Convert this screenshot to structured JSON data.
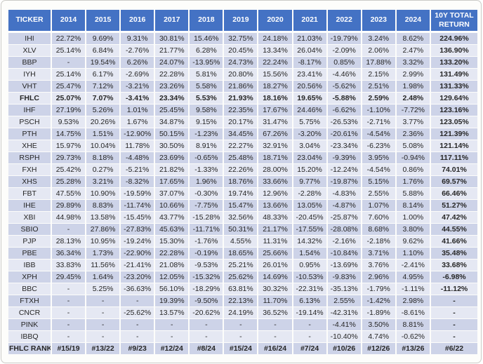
{
  "colors": {
    "header_bg": "#4472C4",
    "header_text": "#FFFFFF",
    "band_dark": "#CDD3E8",
    "band_light": "#E5E8F3",
    "text": "#262626",
    "card_border": "#CBCBC7"
  },
  "chart_data": {
    "type": "table",
    "title": "",
    "columns": [
      "TICKER",
      "2014",
      "2015",
      "2016",
      "2017",
      "2018",
      "2019",
      "2020",
      "2021",
      "2022",
      "2023",
      "2024",
      "10Y TOTAL RETURN"
    ],
    "rows": [
      {
        "ticker": "IHI",
        "bold": false,
        "values": [
          "22.72%",
          "9.69%",
          "9.31%",
          "30.81%",
          "15.46%",
          "32.75%",
          "24.18%",
          "21.03%",
          "-19.79%",
          "3.24%",
          "8.62%",
          "224.96%"
        ]
      },
      {
        "ticker": "XLV",
        "bold": false,
        "values": [
          "25.14%",
          "6.84%",
          "-2.76%",
          "21.77%",
          "6.28%",
          "20.45%",
          "13.34%",
          "26.04%",
          "-2.09%",
          "2.06%",
          "2.47%",
          "136.90%"
        ]
      },
      {
        "ticker": "BBP",
        "bold": false,
        "values": [
          "-",
          "19.54%",
          "6.26%",
          "24.07%",
          "-13.95%",
          "24.73%",
          "22.24%",
          "-8.17%",
          "0.85%",
          "17.88%",
          "3.32%",
          "133.20%"
        ]
      },
      {
        "ticker": "IYH",
        "bold": false,
        "values": [
          "25.14%",
          "6.17%",
          "-2.69%",
          "22.28%",
          "5.81%",
          "20.80%",
          "15.56%",
          "23.41%",
          "-4.46%",
          "2.15%",
          "2.99%",
          "131.49%"
        ]
      },
      {
        "ticker": "VHT",
        "bold": false,
        "values": [
          "25.47%",
          "7.12%",
          "-3.21%",
          "23.26%",
          "5.58%",
          "21.86%",
          "18.27%",
          "20.56%",
          "-5.62%",
          "2.51%",
          "1.98%",
          "131.33%"
        ]
      },
      {
        "ticker": "FHLC",
        "bold": true,
        "values": [
          "25.07%",
          "7.07%",
          "-3.41%",
          "23.34%",
          "5.53%",
          "21.93%",
          "18.16%",
          "19.65%",
          "-5.88%",
          "2.59%",
          "2.48%",
          "129.64%"
        ]
      },
      {
        "ticker": "IHF",
        "bold": false,
        "values": [
          "27.19%",
          "5.26%",
          "1.01%",
          "25.45%",
          "9.58%",
          "22.35%",
          "17.67%",
          "24.46%",
          "-6.62%",
          "-1.10%",
          "-7.72%",
          "123.16%"
        ]
      },
      {
        "ticker": "PSCH",
        "bold": false,
        "values": [
          "9.53%",
          "20.26%",
          "1.67%",
          "34.87%",
          "9.15%",
          "20.17%",
          "31.47%",
          "5.75%",
          "-26.53%",
          "-2.71%",
          "3.77%",
          "123.05%"
        ]
      },
      {
        "ticker": "PTH",
        "bold": false,
        "values": [
          "14.75%",
          "1.51%",
          "-12.90%",
          "50.15%",
          "-1.23%",
          "34.45%",
          "67.26%",
          "-3.20%",
          "-20.61%",
          "-4.54%",
          "2.36%",
          "121.39%"
        ]
      },
      {
        "ticker": "XHE",
        "bold": false,
        "values": [
          "15.97%",
          "10.04%",
          "11.78%",
          "30.50%",
          "8.91%",
          "22.27%",
          "32.91%",
          "3.04%",
          "-23.34%",
          "-6.23%",
          "5.08%",
          "121.14%"
        ]
      },
      {
        "ticker": "RSPH",
        "bold": false,
        "values": [
          "29.73%",
          "8.18%",
          "-4.48%",
          "23.69%",
          "-0.65%",
          "25.48%",
          "18.71%",
          "23.04%",
          "-9.39%",
          "3.95%",
          "-0.94%",
          "117.11%"
        ]
      },
      {
        "ticker": "FXH",
        "bold": false,
        "values": [
          "25.42%",
          "0.27%",
          "-5.21%",
          "21.82%",
          "-1.33%",
          "22.26%",
          "28.00%",
          "15.20%",
          "-12.24%",
          "-4.54%",
          "0.86%",
          "74.01%"
        ]
      },
      {
        "ticker": "XHS",
        "bold": false,
        "values": [
          "25.28%",
          "3.21%",
          "-8.32%",
          "17.65%",
          "1.96%",
          "18.76%",
          "33.66%",
          "9.77%",
          "-19.87%",
          "5.15%",
          "1.76%",
          "69.57%"
        ]
      },
      {
        "ticker": "FBT",
        "bold": false,
        "values": [
          "47.55%",
          "10.90%",
          "-19.59%",
          "37.07%",
          "-0.30%",
          "19.74%",
          "12.96%",
          "-2.28%",
          "-4.83%",
          "2.55%",
          "5.88%",
          "66.46%"
        ]
      },
      {
        "ticker": "IHE",
        "bold": false,
        "values": [
          "29.89%",
          "8.83%",
          "-11.74%",
          "10.66%",
          "-7.75%",
          "15.47%",
          "13.66%",
          "13.05%",
          "-4.87%",
          "1.07%",
          "8.14%",
          "51.27%"
        ]
      },
      {
        "ticker": "XBI",
        "bold": false,
        "values": [
          "44.98%",
          "13.58%",
          "-15.45%",
          "43.77%",
          "-15.28%",
          "32.56%",
          "48.33%",
          "-20.45%",
          "-25.87%",
          "7.60%",
          "1.00%",
          "47.42%"
        ]
      },
      {
        "ticker": "SBIO",
        "bold": false,
        "values": [
          "-",
          "27.86%",
          "-27.83%",
          "45.63%",
          "-11.71%",
          "50.31%",
          "21.17%",
          "-17.55%",
          "-28.08%",
          "8.68%",
          "3.80%",
          "44.55%"
        ]
      },
      {
        "ticker": "PJP",
        "bold": false,
        "values": [
          "28.13%",
          "10.95%",
          "-19.24%",
          "15.30%",
          "-1.76%",
          "4.55%",
          "11.31%",
          "14.32%",
          "-2.16%",
          "-2.18%",
          "9.62%",
          "41.66%"
        ]
      },
      {
        "ticker": "PBE",
        "bold": false,
        "values": [
          "36.34%",
          "1.73%",
          "-22.90%",
          "22.28%",
          "-0.19%",
          "18.65%",
          "25.66%",
          "1.54%",
          "-10.84%",
          "3.71%",
          "1.10%",
          "35.48%"
        ]
      },
      {
        "ticker": "IBB",
        "bold": false,
        "values": [
          "33.83%",
          "11.56%",
          "-21.41%",
          "21.08%",
          "-9.53%",
          "25.21%",
          "26.01%",
          "0.95%",
          "-13.69%",
          "3.76%",
          "-2.41%",
          "33.68%"
        ]
      },
      {
        "ticker": "XPH",
        "bold": false,
        "values": [
          "29.45%",
          "1.64%",
          "-23.20%",
          "12.05%",
          "-15.32%",
          "25.62%",
          "14.69%",
          "-10.53%",
          "-9.83%",
          "2.96%",
          "4.95%",
          "-6.98%"
        ]
      },
      {
        "ticker": "BBC",
        "bold": false,
        "values": [
          "-",
          "5.25%",
          "-36.63%",
          "56.10%",
          "-18.29%",
          "63.81%",
          "30.32%",
          "-22.31%",
          "-35.13%",
          "-1.79%",
          "-1.11%",
          "-11.12%"
        ]
      },
      {
        "ticker": "FTXH",
        "bold": false,
        "values": [
          "-",
          "-",
          "-",
          "19.39%",
          "-9.50%",
          "22.13%",
          "11.70%",
          "6.13%",
          "2.55%",
          "-1.42%",
          "2.98%",
          "-"
        ]
      },
      {
        "ticker": "CNCR",
        "bold": false,
        "values": [
          "-",
          "-",
          "-25.62%",
          "13.57%",
          "-20.62%",
          "24.19%",
          "36.52%",
          "-19.14%",
          "-42.31%",
          "-1.89%",
          "-8.61%",
          "-"
        ]
      },
      {
        "ticker": "PINK",
        "bold": false,
        "values": [
          "-",
          "-",
          "-",
          "-",
          "-",
          "-",
          "-",
          "-",
          "-4.41%",
          "3.50%",
          "8.81%",
          "-"
        ]
      },
      {
        "ticker": "IBBQ",
        "bold": false,
        "values": [
          "-",
          "-",
          "-",
          "-",
          "-",
          "-",
          "-",
          "-",
          "-10.40%",
          "4.74%",
          "-0.62%",
          "-"
        ]
      },
      {
        "ticker": "FHLC RANK",
        "bold": true,
        "values": [
          "#15/19",
          "#13/22",
          "#9/23",
          "#12/24",
          "#8/24",
          "#15/24",
          "#16/24",
          "#7/24",
          "#10/26",
          "#12/26",
          "#13/26",
          "#6/22"
        ]
      }
    ]
  }
}
